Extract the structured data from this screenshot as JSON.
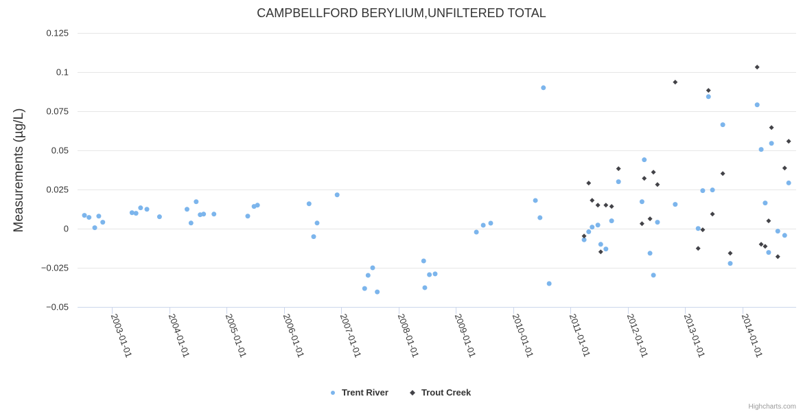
{
  "chart_data": {
    "type": "scatter",
    "title": "CAMPBELLFORD BERYLIUM,UNFILTERED TOTAL",
    "xlabel": "",
    "ylabel": "Measurements (µg/L)",
    "xlim": [
      2002.4,
      2014.94
    ],
    "ylim": [
      -0.05,
      0.125
    ],
    "grid": true,
    "legend_position": "bottom-center",
    "y_ticks": [
      {
        "value": 0.125,
        "label": "0.125"
      },
      {
        "value": 0.1,
        "label": "0.1"
      },
      {
        "value": 0.075,
        "label": "0.075"
      },
      {
        "value": 0.05,
        "label": "0.05"
      },
      {
        "value": 0.025,
        "label": "0.025"
      },
      {
        "value": 0,
        "label": "0"
      },
      {
        "value": -0.025,
        "label": "−0.025"
      },
      {
        "value": -0.05,
        "label": "−0.05"
      }
    ],
    "x_ticks": [
      {
        "value": 2003,
        "label": "2003-01-01"
      },
      {
        "value": 2004,
        "label": "2004-01-01"
      },
      {
        "value": 2005,
        "label": "2005-01-01"
      },
      {
        "value": 2006,
        "label": "2006-01-01"
      },
      {
        "value": 2007,
        "label": "2007-01-01"
      },
      {
        "value": 2008,
        "label": "2008-01-01"
      },
      {
        "value": 2009,
        "label": "2009-01-01"
      },
      {
        "value": 2010,
        "label": "2010-01-01"
      },
      {
        "value": 2011,
        "label": "2011-01-01"
      },
      {
        "value": 2012,
        "label": "2012-01-01"
      },
      {
        "value": 2013,
        "label": "2013-01-01"
      },
      {
        "value": 2014,
        "label": "2014-01-01"
      }
    ],
    "series": [
      {
        "name": "Trent River",
        "color": "#7cb5ec",
        "marker": "circle",
        "points": [
          [
            2002.52,
            0.0085
          ],
          [
            2002.6,
            0.0072
          ],
          [
            2002.7,
            0.0006
          ],
          [
            2002.77,
            0.008
          ],
          [
            2002.84,
            0.0041
          ],
          [
            2003.35,
            0.0102
          ],
          [
            2003.42,
            0.0098
          ],
          [
            2003.5,
            0.0133
          ],
          [
            2003.61,
            0.0124
          ],
          [
            2003.83,
            0.0076
          ],
          [
            2004.31,
            0.0124
          ],
          [
            2004.38,
            0.0036
          ],
          [
            2004.47,
            0.0172
          ],
          [
            2004.54,
            0.0089
          ],
          [
            2004.6,
            0.0093
          ],
          [
            2004.78,
            0.0093
          ],
          [
            2005.37,
            0.008
          ],
          [
            2005.48,
            0.0142
          ],
          [
            2005.54,
            0.015
          ],
          [
            2006.44,
            0.0159
          ],
          [
            2006.52,
            -0.0051
          ],
          [
            2006.58,
            0.0036
          ],
          [
            2006.93,
            0.0216
          ],
          [
            2007.41,
            -0.0382
          ],
          [
            2007.47,
            -0.0298
          ],
          [
            2007.55,
            -0.025
          ],
          [
            2007.63,
            -0.0404
          ],
          [
            2008.44,
            -0.0206
          ],
          [
            2008.46,
            -0.0377
          ],
          [
            2008.54,
            -0.0294
          ],
          [
            2008.64,
            -0.0289
          ],
          [
            2009.36,
            -0.0022
          ],
          [
            2009.48,
            0.0022
          ],
          [
            2009.61,
            0.0035
          ],
          [
            2010.39,
            0.018
          ],
          [
            2010.47,
            0.007
          ],
          [
            2010.53,
            0.09
          ],
          [
            2010.63,
            -0.0351
          ],
          [
            2011.24,
            -0.0071
          ],
          [
            2011.32,
            -0.002
          ],
          [
            2011.38,
            0.001
          ],
          [
            2011.48,
            0.0023
          ],
          [
            2011.53,
            -0.01
          ],
          [
            2011.62,
            -0.013
          ],
          [
            2011.72,
            0.005
          ],
          [
            2011.84,
            0.03
          ],
          [
            2012.25,
            0.0172
          ],
          [
            2012.29,
            0.044
          ],
          [
            2012.39,
            -0.0157
          ],
          [
            2012.45,
            -0.0297
          ],
          [
            2012.52,
            0.0041
          ],
          [
            2012.83,
            0.0155
          ],
          [
            2013.23,
            0.0001
          ],
          [
            2013.31,
            0.0243
          ],
          [
            2013.41,
            0.0843
          ],
          [
            2013.48,
            0.0247
          ],
          [
            2013.66,
            0.0664
          ],
          [
            2013.79,
            -0.0222
          ],
          [
            2014.26,
            0.0791
          ],
          [
            2014.33,
            0.0506
          ],
          [
            2014.4,
            0.0164
          ],
          [
            2014.46,
            -0.0152
          ],
          [
            2014.51,
            0.0545
          ],
          [
            2014.62,
            -0.0016
          ],
          [
            2014.74,
            -0.0043
          ],
          [
            2014.81,
            0.0292
          ]
        ]
      },
      {
        "name": "Trout Creek",
        "color": "#434348",
        "marker": "diamond",
        "points": [
          [
            2011.24,
            -0.0047
          ],
          [
            2011.32,
            0.0291
          ],
          [
            2011.38,
            0.0181
          ],
          [
            2011.48,
            0.015
          ],
          [
            2011.53,
            -0.0148
          ],
          [
            2011.62,
            0.015
          ],
          [
            2011.72,
            0.0142
          ],
          [
            2011.84,
            0.0383
          ],
          [
            2012.25,
            0.0032
          ],
          [
            2012.29,
            0.0321
          ],
          [
            2012.39,
            0.0063
          ],
          [
            2012.45,
            0.0361
          ],
          [
            2012.52,
            0.0282
          ],
          [
            2012.83,
            0.0936
          ],
          [
            2013.23,
            -0.0126
          ],
          [
            2013.31,
            -0.0007
          ],
          [
            2013.41,
            0.0883
          ],
          [
            2013.48,
            0.0093
          ],
          [
            2013.66,
            0.0352
          ],
          [
            2013.79,
            -0.0157
          ],
          [
            2014.26,
            0.1032
          ],
          [
            2014.33,
            -0.01
          ],
          [
            2014.4,
            -0.0113
          ],
          [
            2014.46,
            0.005
          ],
          [
            2014.51,
            0.0646
          ],
          [
            2014.62,
            -0.0179
          ],
          [
            2014.74,
            0.0387
          ],
          [
            2014.81,
            0.0558
          ]
        ]
      }
    ]
  },
  "credits": "Highcharts.com"
}
